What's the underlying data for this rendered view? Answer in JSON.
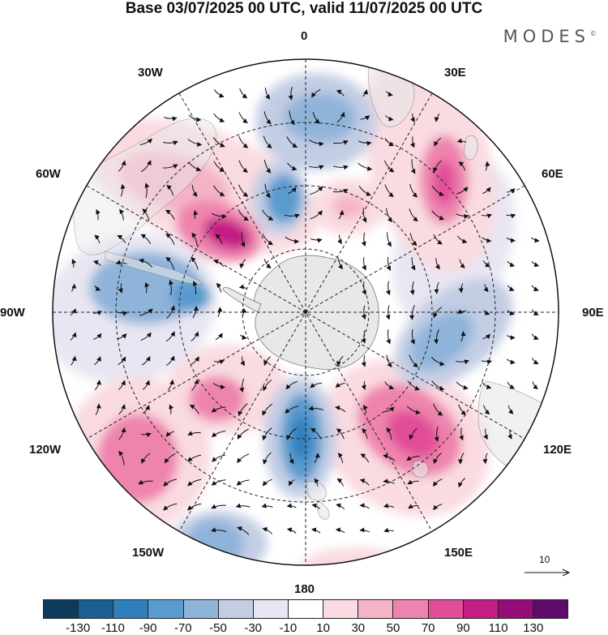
{
  "title": "Base 03/07/2025 00 UTC, valid 11/07/2025 00 UTC",
  "brand": "MODES",
  "brand_mark": "©",
  "longitude_labels": {
    "top": "0",
    "bottom": "180",
    "e30": "30E",
    "e60": "60E",
    "e90": "90E",
    "e120": "120E",
    "e150": "150E",
    "w30": "30W",
    "w60": "60W",
    "w90": "90W",
    "w120": "120W",
    "w150": "150W"
  },
  "reference_vector": "10",
  "colorbar": {
    "colors": [
      "#0c3b5e",
      "#1a5f92",
      "#2f7fbd",
      "#5a9bcf",
      "#8fb4da",
      "#c3cde4",
      "#e8e6f2",
      "#ffffff",
      "#f9dbe1",
      "#f5b3c6",
      "#ee84ad",
      "#e14d98",
      "#c41e86",
      "#960d7a",
      "#5e0b6b"
    ],
    "tick_labels": [
      "-130",
      "-110",
      "-90",
      "-70",
      "-50",
      "-30",
      "-10",
      "10",
      "30",
      "50",
      "70",
      "90",
      "110",
      "130"
    ]
  },
  "colors": {
    "land": "#e8e8e8",
    "coast": "#7a7a7a",
    "grid": "#222222"
  }
}
